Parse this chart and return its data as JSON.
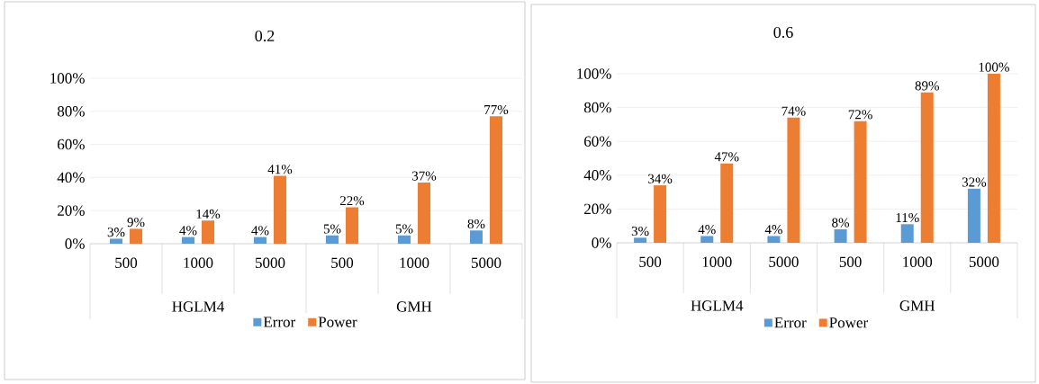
{
  "chart_data": [
    {
      "type": "bar",
      "title": "0.2",
      "categories": [
        "500",
        "1000",
        "5000",
        "500",
        "1000",
        "5000"
      ],
      "annotations": [
        "HGLM4",
        "GMH"
      ],
      "series": [
        {
          "name": "Error",
          "color": "#5b9bd5",
          "values": [
            3,
            4,
            4,
            5,
            5,
            8
          ],
          "value_labels": [
            "3%",
            "4%",
            "4%",
            "5%",
            "5%",
            "8%"
          ]
        },
        {
          "name": "Power",
          "color": "#ed7d31",
          "values": [
            9,
            14,
            41,
            22,
            37,
            77
          ],
          "value_labels": [
            "9%",
            "14%",
            "41%",
            "22%",
            "37%",
            "77%"
          ]
        }
      ],
      "ylim": [
        0,
        100
      ],
      "yticks": [
        {
          "value": 0,
          "label": "0%"
        },
        {
          "value": 20,
          "label": "20%"
        },
        {
          "value": 40,
          "label": "40%"
        },
        {
          "value": 60,
          "label": "60%"
        },
        {
          "value": 80,
          "label": "80%"
        },
        {
          "value": 100,
          "label": "100%"
        }
      ],
      "grid": "y",
      "legend": "bottom"
    },
    {
      "type": "bar",
      "title": "0.6",
      "categories": [
        "500",
        "1000",
        "5000",
        "500",
        "1000",
        "5000"
      ],
      "annotations": [
        "HGLM4",
        "GMH"
      ],
      "series": [
        {
          "name": "Error",
          "color": "#5b9bd5",
          "values": [
            3,
            4,
            4,
            8,
            11,
            32
          ],
          "value_labels": [
            "3%",
            "4%",
            "4%",
            "8%",
            "11%",
            "32%"
          ]
        },
        {
          "name": "Power",
          "color": "#ed7d31",
          "values": [
            34,
            47,
            74,
            72,
            89,
            100
          ],
          "value_labels": [
            "34%",
            "47%",
            "74%",
            "72%",
            "89%",
            "100%"
          ]
        }
      ],
      "ylim": [
        0,
        100
      ],
      "yticks": [
        {
          "value": 0,
          "label": "0%"
        },
        {
          "value": 20,
          "label": "20%"
        },
        {
          "value": 40,
          "label": "40%"
        },
        {
          "value": 60,
          "label": "60%"
        },
        {
          "value": 80,
          "label": "80%"
        },
        {
          "value": 100,
          "label": "100%"
        }
      ],
      "grid": "y",
      "legend": "bottom"
    }
  ]
}
